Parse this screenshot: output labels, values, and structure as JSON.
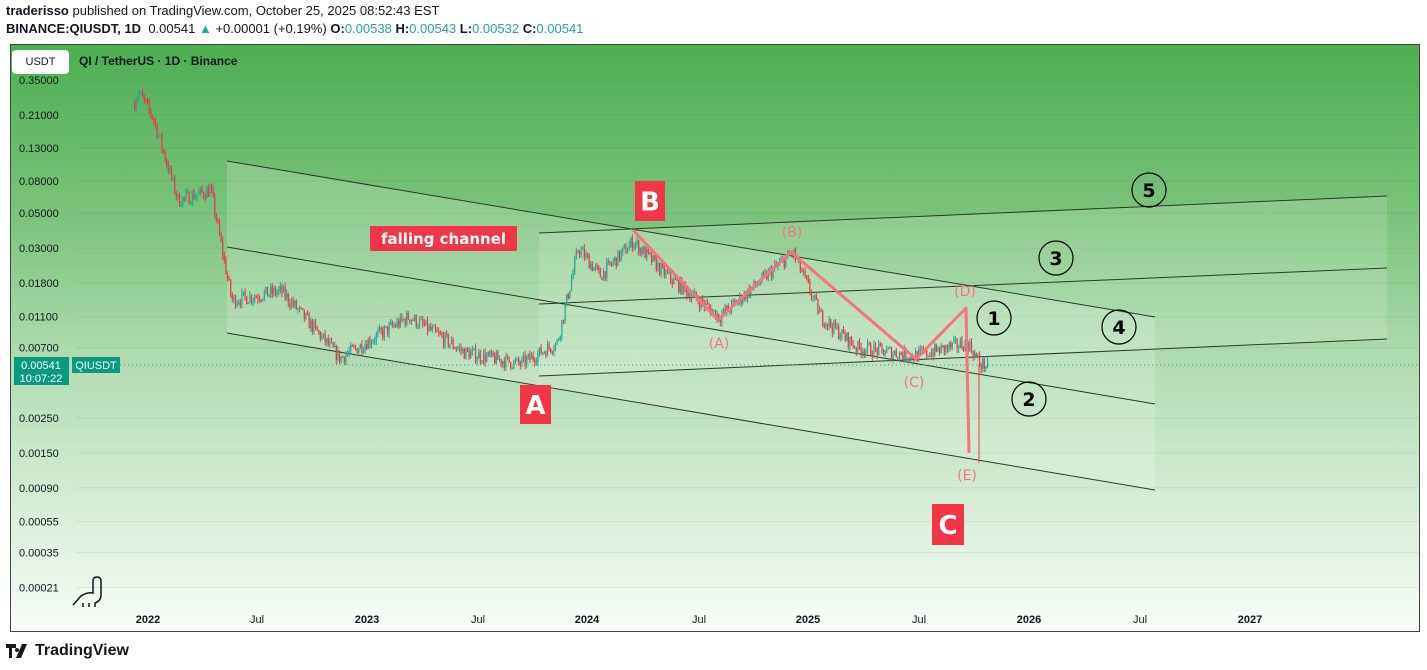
{
  "header": {
    "author": "traderisso",
    "published": "published on TradingView.com, October 25, 2025 08:52:43 EST",
    "symbol": "BINANCE:QIUSDT, 1D",
    "last": "0.00541",
    "change": "+0.00001 (+0.19%)",
    "o_label": "O:",
    "o": "0.00538",
    "h_label": "H:",
    "h": "0.00543",
    "l_label": "L:",
    "l": "0.00532",
    "c_label": "C:",
    "c": "0.00541"
  },
  "chart_header": {
    "currency_button": "USDT",
    "title": "QI / TetherUS · 1D · Binance"
  },
  "price_tag": {
    "price": "0.00541",
    "countdown": "10:07:22",
    "symbol": "QIUSDT"
  },
  "footer": {
    "brand": "TradingView"
  },
  "colors": {
    "up": "#26a69a",
    "down": "#f23645",
    "annotation": "#f23645",
    "wave": "#f7747f",
    "background_top": "#4caf50"
  },
  "icons": {
    "logo": "tradingview-logo-icon",
    "dino": "dinosaur-icon",
    "up_arrow": "triangle-up-icon"
  },
  "chart_data": {
    "type": "line",
    "scale": "log",
    "y_ticks": [
      "0.35000",
      "0.21000",
      "0.13000",
      "0.08000",
      "0.05000",
      "0.03000",
      "0.01800",
      "0.01100",
      "0.00700",
      "0.00250",
      "0.00150",
      "0.00090",
      "0.00055",
      "0.00035",
      "0.00021"
    ],
    "x_ticks": [
      "2022",
      "Jul",
      "2023",
      "Jul",
      "2024",
      "Jul",
      "2025",
      "Jul",
      "2026",
      "Jul",
      "2027"
    ],
    "grid": true,
    "series": [
      {
        "x": [
          "2021-12-10",
          "2021-12-15",
          "2022-01-10",
          "2022-02-20",
          "2022-04-15",
          "2022-05-12",
          "2022-05-20",
          "2022-08-10",
          "2022-11-15",
          "2023-03-10",
          "2023-06-10",
          "2023-09-10",
          "2023-11-10",
          "2023-12-15",
          "2024-01-20",
          "2024-03-15",
          "2024-05-10",
          "2024-08-05",
          "2024-12-05",
          "2025-01-20",
          "2025-03-20",
          "2025-06-25",
          "2025-09-20",
          "2025-10-10",
          "2025-10-25"
        ],
        "values": [
          0.25,
          0.3,
          0.2,
          0.06,
          0.07,
          0.02,
          0.014,
          0.016,
          0.006,
          0.011,
          0.0065,
          0.0055,
          0.0075,
          0.03,
          0.02,
          0.033,
          0.02,
          0.011,
          0.028,
          0.011,
          0.007,
          0.0062,
          0.0075,
          0.0055,
          0.00541
        ]
      }
    ],
    "annotations": {
      "channel_label": "falling channel",
      "labels_abc": [
        "A",
        "B",
        "C"
      ],
      "wave_labels": [
        "(A)",
        "(B)",
        "(C)",
        "(D)",
        "(E)"
      ],
      "impulse_labels": [
        "1",
        "2",
        "3",
        "4",
        "5"
      ]
    }
  }
}
